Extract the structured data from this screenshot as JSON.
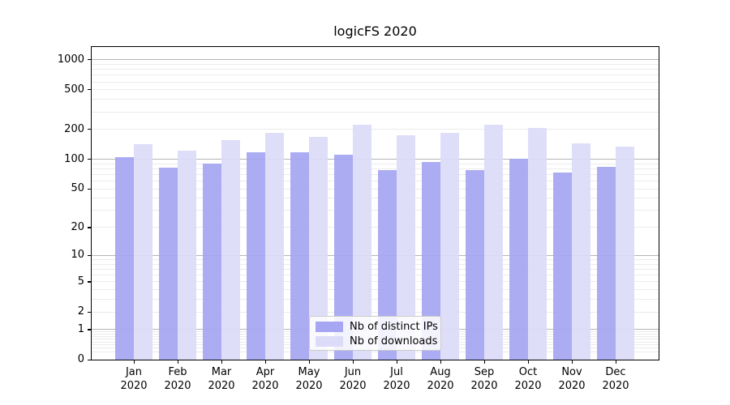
{
  "chart_data": {
    "type": "bar",
    "title": "logicFS 2020",
    "x_categories": [
      {
        "line1": "Jan",
        "line2": "2020"
      },
      {
        "line1": "Feb",
        "line2": "2020"
      },
      {
        "line1": "Mar",
        "line2": "2020"
      },
      {
        "line1": "Apr",
        "line2": "2020"
      },
      {
        "line1": "May",
        "line2": "2020"
      },
      {
        "line1": "Jun",
        "line2": "2020"
      },
      {
        "line1": "Jul",
        "line2": "2020"
      },
      {
        "line1": "Aug",
        "line2": "2020"
      },
      {
        "line1": "Sep",
        "line2": "2020"
      },
      {
        "line1": "Oct",
        "line2": "2020"
      },
      {
        "line1": "Nov",
        "line2": "2020"
      },
      {
        "line1": "Dec",
        "line2": "2020"
      }
    ],
    "series": [
      {
        "name": "Nb of distinct IPs",
        "color": "#a6a6f2",
        "values": [
          105,
          82,
          91,
          117,
          117,
          112,
          78,
          94,
          78,
          102,
          73,
          84
        ]
      },
      {
        "name": "Nb of downloads",
        "color": "#dcdcf8",
        "values": [
          142,
          123,
          156,
          183,
          168,
          222,
          173,
          186,
          222,
          208,
          146,
          135
        ]
      }
    ],
    "y_scale": "symlog",
    "y_ticks": [
      0,
      1,
      2,
      5,
      10,
      20,
      50,
      100,
      200,
      500,
      1000
    ],
    "ylim": [
      0,
      1250
    ],
    "grid": {
      "major_at": [
        1,
        10,
        100,
        1000
      ],
      "minor": true,
      "minor_color": "#ebebeb",
      "major_color": "#b4b4b4"
    },
    "legend_position": "lower center inside axes",
    "xlabel": "",
    "ylabel": ""
  },
  "colors": {
    "background": "#ffffff",
    "spine": "#000000",
    "bar_distinct_ips": "#a6a6f2",
    "bar_downloads": "#dcdcf8",
    "legend_border": "#cbcbcb"
  }
}
